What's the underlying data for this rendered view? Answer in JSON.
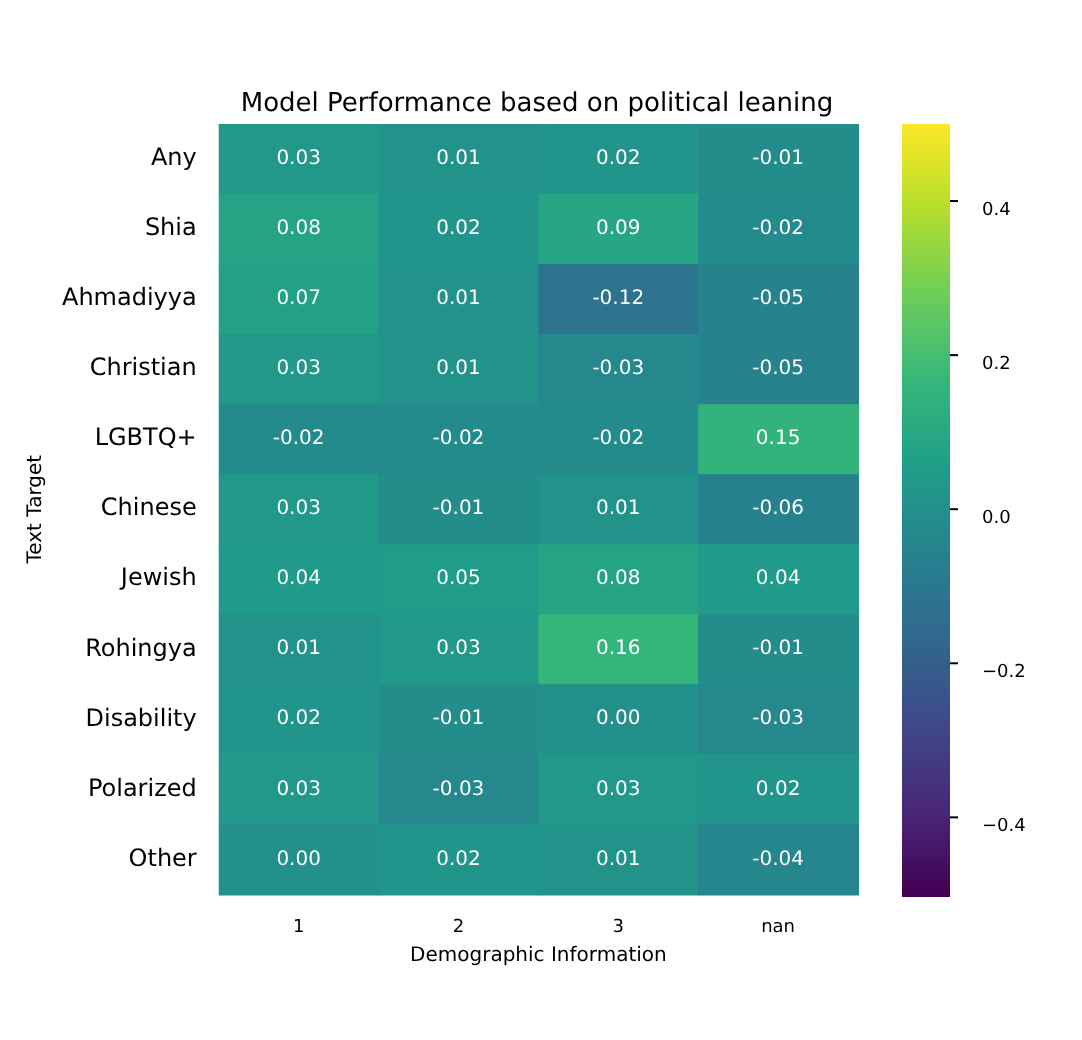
{
  "chart_data": {
    "type": "heatmap",
    "title": "Model Performance based on political leaning",
    "xlabel": "Demographic Information",
    "ylabel": "Text Target",
    "categories": [
      "1",
      "2",
      "3",
      "nan"
    ],
    "y_categories": [
      "Any",
      "Shia",
      "Ahmadiyya",
      "Christian",
      "LGBTQ+",
      "Chinese",
      "Jewish",
      "Rohingya",
      "Disability",
      "Polarized",
      "Other"
    ],
    "cells": [
      [
        0.03,
        0.01,
        0.02,
        -0.01
      ],
      [
        0.08,
        0.02,
        0.09,
        -0.02
      ],
      [
        0.07,
        0.01,
        -0.12,
        -0.05
      ],
      [
        0.03,
        0.01,
        -0.03,
        -0.05
      ],
      [
        -0.02,
        -0.02,
        -0.02,
        0.15
      ],
      [
        0.03,
        -0.01,
        0.01,
        -0.06
      ],
      [
        0.04,
        0.05,
        0.08,
        0.04
      ],
      [
        0.01,
        0.03,
        0.16,
        -0.01
      ],
      [
        0.02,
        -0.01,
        0.0,
        -0.03
      ],
      [
        0.03,
        -0.03,
        0.03,
        0.02
      ],
      [
        0.0,
        0.02,
        0.01,
        -0.04
      ]
    ],
    "cell_labels": [
      [
        "0.03",
        "0.01",
        "0.02",
        "-0.01"
      ],
      [
        "0.08",
        "0.02",
        "0.09",
        "-0.02"
      ],
      [
        "0.07",
        "0.01",
        "-0.12",
        "-0.05"
      ],
      [
        "0.03",
        "0.01",
        "-0.03",
        "-0.05"
      ],
      [
        "-0.02",
        "-0.02",
        "-0.02",
        "0.15"
      ],
      [
        "0.03",
        "-0.01",
        "0.01",
        "-0.06"
      ],
      [
        "0.04",
        "0.05",
        "0.08",
        "0.04"
      ],
      [
        "0.01",
        "0.03",
        "0.16",
        "-0.01"
      ],
      [
        "0.02",
        "-0.01",
        "0.00",
        "-0.03"
      ],
      [
        "0.03",
        "-0.03",
        "0.03",
        "0.02"
      ],
      [
        "0.00",
        "0.02",
        "0.01",
        "-0.04"
      ]
    ],
    "clim": [
      -0.5,
      0.5
    ],
    "cticks": [
      {
        "value": -0.4,
        "label": "−0.4"
      },
      {
        "value": -0.2,
        "label": "−0.2"
      },
      {
        "value": 0,
        "label": "0.0"
      },
      {
        "value": 0.2,
        "label": "0.2"
      },
      {
        "value": 0.4,
        "label": "0.4"
      }
    ]
  }
}
